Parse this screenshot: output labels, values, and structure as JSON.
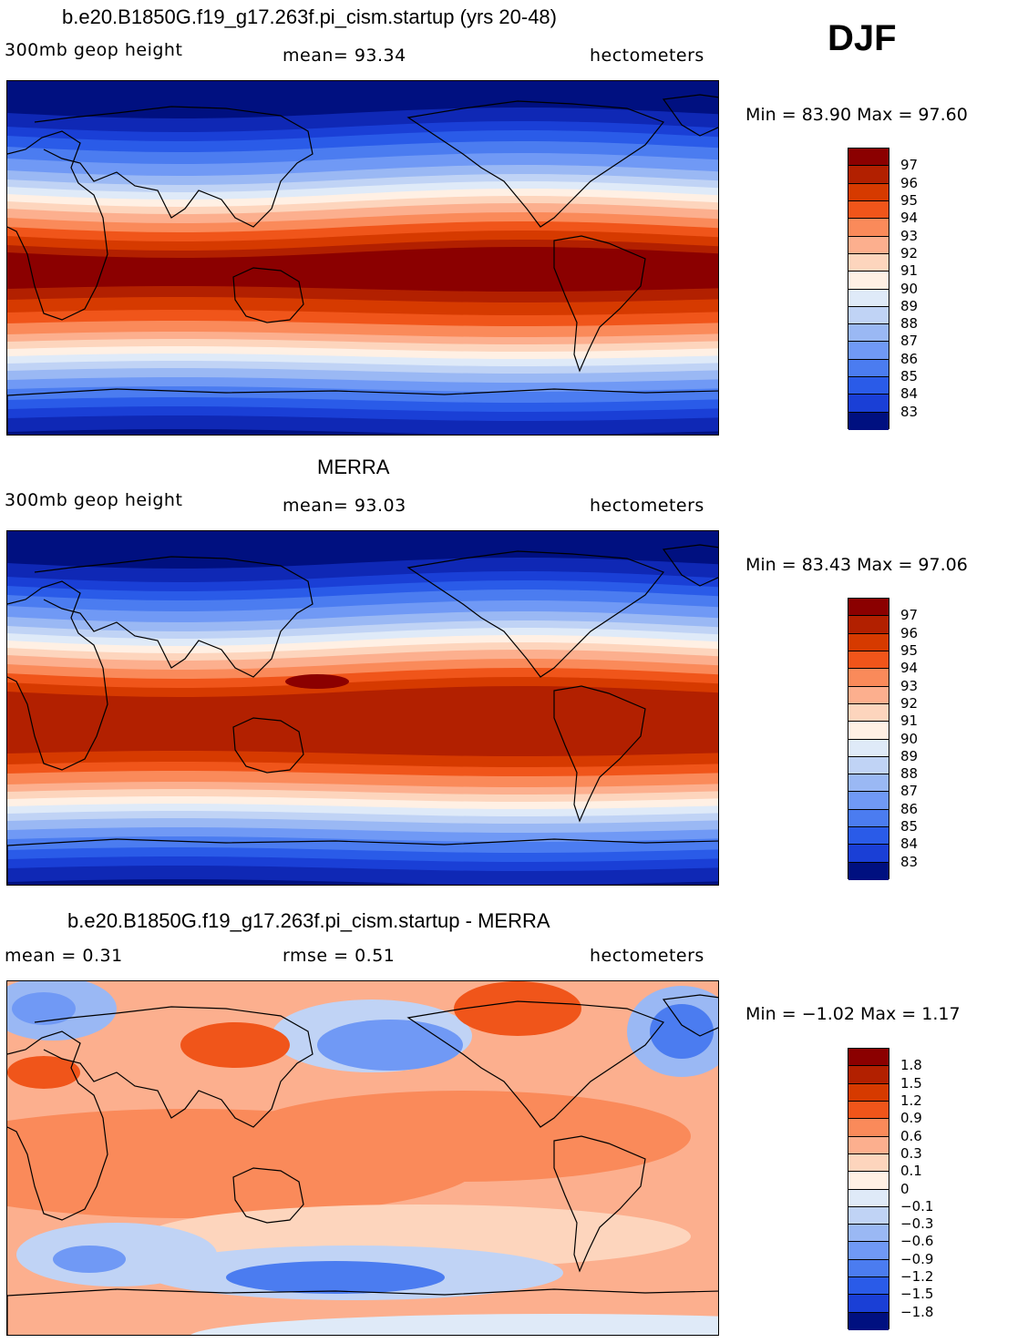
{
  "season": "DJF",
  "panels": [
    {
      "title": "b.e20.B1850G.f19_g17.263f.pi_cism.startup (yrs 20-48)",
      "left_label": "300mb geop height",
      "center_label": "mean=  93.34",
      "units": "hectometers",
      "minmax": "Min =   83.90 Max =   97.60",
      "levels": [
        "97",
        "96",
        "95",
        "94",
        "93",
        "92",
        "91",
        "90",
        "89",
        "88",
        "87",
        "86",
        "85",
        "84",
        "83"
      ]
    },
    {
      "title": "MERRA",
      "left_label": "300mb geop height",
      "center_label": "mean=  93.03",
      "units": "hectometers",
      "minmax": "Min =   83.43 Max =   97.06",
      "levels": [
        "97",
        "96",
        "95",
        "94",
        "93",
        "92",
        "91",
        "90",
        "89",
        "88",
        "87",
        "86",
        "85",
        "84",
        "83"
      ]
    },
    {
      "title": "b.e20.B1850G.f19_g17.263f.pi_cism.startup - MERRA",
      "left_label": "mean =     0.31",
      "center_label": "rmse =     0.51",
      "units": "hectometers",
      "minmax": "Min =   −1.02 Max =     1.17",
      "levels": [
        "1.8",
        "1.5",
        "1.2",
        "0.9",
        "0.6",
        "0.3",
        "0.1",
        "0",
        "−0.1",
        "−0.3",
        "−0.6",
        "−0.9",
        "−1.2",
        "−1.5",
        "−1.8"
      ]
    }
  ],
  "colors": {
    "field": [
      "#8b0000",
      "#b22000",
      "#d63a00",
      "#f0551a",
      "#fa8a5a",
      "#fcaf8e",
      "#fdd5bd",
      "#fff0e4",
      "#dfeaf8",
      "#c0d3f5",
      "#9ab8f4",
      "#7099f5",
      "#4b7cf0",
      "#2a5be8",
      "#1a3fd6",
      "#0f28b5",
      "#001080"
    ],
    "colorbar_top": [
      "#8b0000",
      "#b22000",
      "#d63a00",
      "#f0551a",
      "#fa8a5a",
      "#fcaf8e",
      "#fdd5bd",
      "#fff0e4",
      "#dfeaf8",
      "#c0d3f5",
      "#9ab8f4",
      "#7099f5",
      "#4b7cf0",
      "#2a5be8",
      "#1a3fd6",
      "#001080"
    ],
    "colorbar_diff": [
      "#8b0000",
      "#b22000",
      "#d63a00",
      "#f0551a",
      "#fa8a5a",
      "#fcaf8e",
      "#fdd5bd",
      "#fff0e4",
      "#dfeaf8",
      "#c0d3f5",
      "#9ab8f4",
      "#7099f5",
      "#4b7cf0",
      "#2a5be8",
      "#1a3fd6",
      "#001080"
    ]
  }
}
